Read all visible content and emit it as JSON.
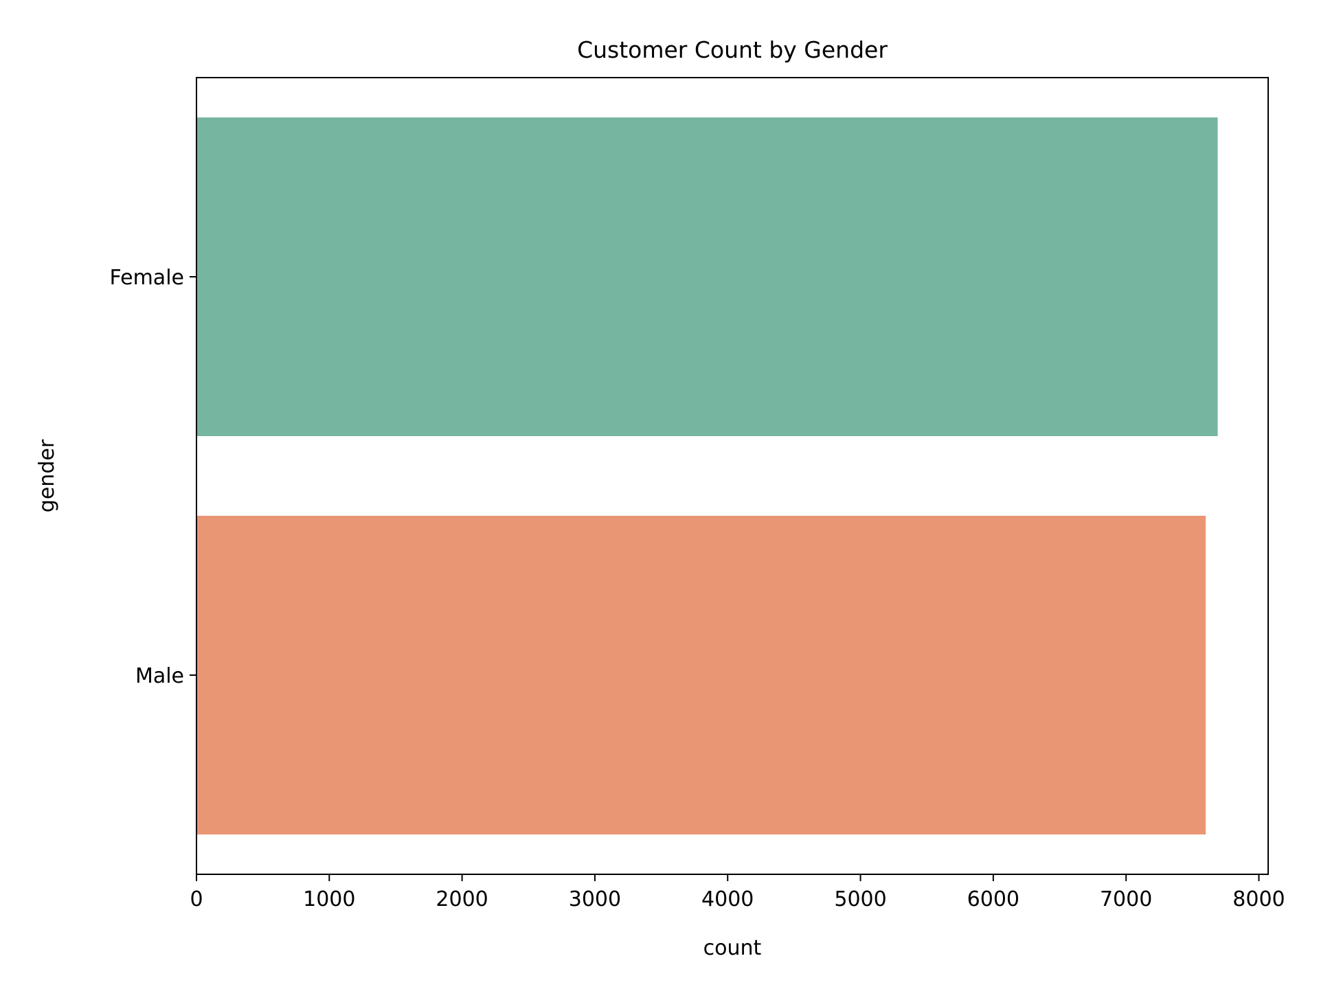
{
  "chart_data": {
    "type": "bar",
    "orientation": "horizontal",
    "title": "Customer Count by Gender",
    "xlabel": "count",
    "ylabel": "gender",
    "categories": [
      "Female",
      "Male"
    ],
    "values": [
      7690,
      7600
    ],
    "colors": [
      "#76b5a0",
      "#e99675"
    ],
    "xlim": [
      0,
      8070
    ],
    "xticks": [
      0,
      1000,
      2000,
      3000,
      4000,
      5000,
      6000,
      7000,
      8000
    ],
    "grid": false,
    "legend": "none"
  }
}
